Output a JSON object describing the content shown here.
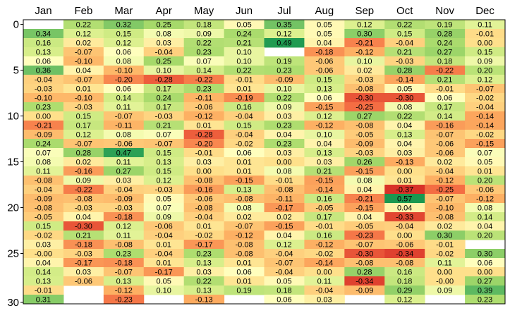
{
  "chart_data": {
    "type": "heatmap",
    "title": "",
    "xlabel": "",
    "ylabel": "",
    "columns": [
      "Jan",
      "Feb",
      "Mar",
      "Apr",
      "May",
      "Jun",
      "Jul",
      "Aug",
      "Sep",
      "Oct",
      "Nov",
      "Dec"
    ],
    "row_tick_labels": [
      "0",
      "5",
      "10",
      "15",
      "20",
      "25",
      "30"
    ],
    "row_tick_values": [
      0,
      5,
      10,
      15,
      20,
      25,
      30
    ],
    "color_scale": {
      "min": -0.5,
      "max": 0.5,
      "low": "#a50026",
      "mid": "#ffffbf",
      "high": "#006837"
    },
    "values": [
      [
        null,
        0.22,
        0.32,
        0.25,
        0.18,
        0.05,
        0.35,
        0.05,
        0.12,
        0.22,
        0.19,
        0.11
      ],
      [
        0.34,
        0.12,
        0.15,
        0.08,
        0.09,
        0.24,
        0.12,
        0.05,
        0.3,
        0.15,
        0.28,
        -0.01
      ],
      [
        0.16,
        0.02,
        0.12,
        0.03,
        0.22,
        0.21,
        0.49,
        0.04,
        -0.21,
        -0.04,
        0.24,
        0.0
      ],
      [
        0.13,
        -0.07,
        0.06,
        -0.04,
        0.23,
        0.1,
        null,
        -0.18,
        -0.12,
        0.21,
        0.27,
        0.15
      ],
      [
        0.06,
        -0.1,
        0.08,
        0.25,
        0.07,
        0.1,
        0.19,
        -0.06,
        0.1,
        -0.03,
        0.18,
        0.09
      ],
      [
        0.36,
        0.04,
        -0.1,
        0.1,
        0.14,
        0.22,
        0.23,
        -0.06,
        0.02,
        0.28,
        -0.22,
        0.2
      ],
      [
        -0.04,
        -0.07,
        -0.2,
        -0.28,
        -0.22,
        -0.01,
        -0.09,
        0.15,
        -0.03,
        -0.14,
        0.21,
        0.12
      ],
      [
        -0.03,
        0.01,
        0.06,
        0.17,
        0.23,
        0.01,
        0.1,
        0.13,
        -0.08,
        0.05,
        -0.01,
        -0.07
      ],
      [
        -0.1,
        -0.1,
        0.14,
        0.24,
        -0.11,
        -0.19,
        0.22,
        0.06,
        -0.3,
        -0.3,
        0.06,
        -0.02
      ],
      [
        0.23,
        -0.03,
        0.11,
        0.17,
        -0.06,
        0.16,
        0.09,
        -0.15,
        -0.25,
        0.08,
        0.17,
        -0.04
      ],
      [
        0.0,
        0.15,
        -0.07,
        -0.03,
        -0.12,
        -0.04,
        0.03,
        0.12,
        0.27,
        0.22,
        0.14,
        -0.14
      ],
      [
        -0.21,
        0.17,
        -0.11,
        0.21,
        0.01,
        0.15,
        0.23,
        -0.12,
        -0.08,
        0.04,
        -0.16,
        -0.14
      ],
      [
        -0.09,
        0.12,
        0.08,
        0.07,
        -0.28,
        -0.04,
        0.04,
        0.1,
        -0.05,
        0.13,
        -0.07,
        -0.02
      ],
      [
        0.24,
        -0.07,
        -0.06,
        -0.07,
        -0.2,
        -0.02,
        0.23,
        0.04,
        -0.09,
        0.04,
        -0.06,
        -0.15
      ],
      [
        0.07,
        0.28,
        0.47,
        0.15,
        -0.01,
        0.06,
        0.03,
        0.13,
        -0.03,
        0.03,
        -0.06,
        0.07
      ],
      [
        0.08,
        0.02,
        0.11,
        0.13,
        0.03,
        0.01,
        0.0,
        0.03,
        0.26,
        -0.13,
        0.02,
        0.05
      ],
      [
        0.11,
        -0.16,
        0.27,
        0.15,
        0.0,
        0.01,
        0.08,
        0.21,
        -0.15,
        0.0,
        -0.04,
        0.01
      ],
      [
        -0.08,
        0.09,
        0.03,
        0.12,
        -0.08,
        -0.15,
        -0.01,
        -0.15,
        0.08,
        0.01,
        -0.12,
        0.2
      ],
      [
        -0.04,
        -0.22,
        -0.04,
        -0.03,
        -0.16,
        0.13,
        -0.08,
        -0.14,
        0.04,
        -0.37,
        -0.25,
        -0.06
      ],
      [
        -0.09,
        -0.08,
        -0.09,
        0.05,
        -0.06,
        -0.08,
        -0.11,
        0.16,
        -0.21,
        0.57,
        -0.07,
        -0.12
      ],
      [
        -0.08,
        -0.03,
        -0.03,
        0.07,
        -0.08,
        0.08,
        -0.17,
        -0.05,
        -0.15,
        0.04,
        -0.1,
        0.08
      ],
      [
        -0.05,
        0.04,
        -0.18,
        0.09,
        -0.04,
        0.02,
        0.02,
        0.17,
        0.04,
        -0.33,
        -0.08,
        0.14
      ],
      [
        0.15,
        -0.3,
        0.12,
        -0.06,
        0.01,
        -0.07,
        -0.15,
        -0.01,
        -0.05,
        -0.04,
        0.02,
        0.04
      ],
      [
        -0.02,
        0.21,
        0.11,
        -0.04,
        -0.02,
        -0.12,
        0.04,
        0.16,
        -0.23,
        0.0,
        0.3,
        0.2
      ],
      [
        0.03,
        -0.18,
        -0.08,
        0.01,
        -0.17,
        -0.08,
        0.12,
        -0.12,
        -0.07,
        -0.06,
        -0.01,
        null
      ],
      [
        -0.0,
        -0.03,
        0.23,
        -0.04,
        0.23,
        -0.08,
        -0.04,
        -0.02,
        -0.3,
        -0.34,
        -0.02,
        0.3
      ],
      [
        0.04,
        -0.17,
        -0.18,
        0.01,
        0.13,
        0.01,
        -0.07,
        -0.14,
        -0.08,
        -0.08,
        0.11,
        0.06
      ],
      [
        0.14,
        0.03,
        -0.07,
        -0.17,
        0.03,
        0.06,
        -0.04,
        0.0,
        0.28,
        0.16,
        0.0,
        0.0
      ],
      [
        0.13,
        -0.06,
        0.13,
        0.05,
        0.22,
        0.01,
        0.05,
        0.11,
        -0.34,
        0.18,
        -0.0,
        0.27
      ],
      [
        -0.01,
        null,
        -0.12,
        0.1,
        0.13,
        0.19,
        0.18,
        -0.04,
        -0.09,
        0.29,
        0.09,
        0.39
      ],
      [
        0.31,
        null,
        -0.23,
        null,
        -0.13,
        null,
        0.06,
        0.03,
        null,
        0.12,
        null,
        0.23
      ]
    ]
  }
}
